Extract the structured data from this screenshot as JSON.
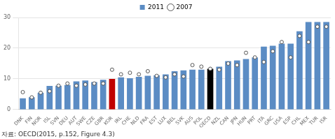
{
  "chart_data": {
    "type": "bar",
    "categories": [
      "DNK",
      "FIN",
      "NOR",
      "ISL",
      "SVN",
      "DEU",
      "AUT",
      "SWE",
      "CZE",
      "GBR",
      "KOR",
      "IRL",
      "CHE",
      "NLD",
      "FRA",
      "EST",
      "LUX",
      "BEL",
      "SVK",
      "AUS",
      "POL",
      "OECD",
      "NZL",
      "CAN",
      "JPN",
      "HUN",
      "PRT",
      "ITA",
      "GRC",
      "USA",
      "ESP",
      "CHL",
      "MEX",
      "TUR",
      "ISR"
    ],
    "series": [
      {
        "name": "2011",
        "type": "bar",
        "color": "#5b8cc4",
        "colors": [
          "#5b8cc4",
          "#5b8cc4",
          "#5b8cc4",
          "#5b8cc4",
          "#5b8cc4",
          "#5b8cc4",
          "#5b8cc4",
          "#5b8cc4",
          "#5b8cc4",
          "#5b8cc4",
          "#c00000",
          "#5b8cc4",
          "#5b8cc4",
          "#5b8cc4",
          "#5b8cc4",
          "#5b8cc4",
          "#5b8cc4",
          "#5b8cc4",
          "#5b8cc4",
          "#5b8cc4",
          "#5b8cc4",
          "#000000",
          "#5b8cc4",
          "#5b8cc4",
          "#5b8cc4",
          "#5b8cc4",
          "#5b8cc4",
          "#5b8cc4",
          "#5b8cc4",
          "#5b8cc4",
          "#5b8cc4",
          "#5b8cc4",
          "#5b8cc4",
          "#5b8cc4",
          "#5b8cc4"
        ],
        "values": [
          3.7,
          4.0,
          5.5,
          7.7,
          7.8,
          8.0,
          9.2,
          9.5,
          9.0,
          9.7,
          10.0,
          10.5,
          10.2,
          10.7,
          11.0,
          11.2,
          11.5,
          12.5,
          12.8,
          13.0,
          13.0,
          13.3,
          14.0,
          15.8,
          16.0,
          16.5,
          17.0,
          20.5,
          20.8,
          21.5,
          21.5,
          25.5,
          28.5,
          28.5,
          28.5
        ]
      },
      {
        "name": "2007",
        "type": "scatter",
        "marker": "circle",
        "values": [
          5.7,
          4.0,
          5.5,
          6.0,
          7.8,
          8.5,
          7.8,
          8.2,
          8.5,
          8.5,
          13.0,
          11.5,
          12.0,
          11.5,
          12.5,
          11.0,
          10.5,
          11.5,
          10.8,
          14.5,
          14.0,
          13.3,
          13.0,
          15.0,
          14.5,
          18.5,
          17.0,
          15.5,
          19.0,
          22.0,
          17.0,
          24.0,
          22.0,
          27.0,
          27.0
        ]
      }
    ],
    "annotations": [
      "자료: OECD(2015, p.152, Figure 4.3)"
    ],
    "ylim": [
      0,
      30
    ],
    "yticks": [
      0,
      10,
      20,
      30
    ],
    "grid": true,
    "legend": "top"
  }
}
